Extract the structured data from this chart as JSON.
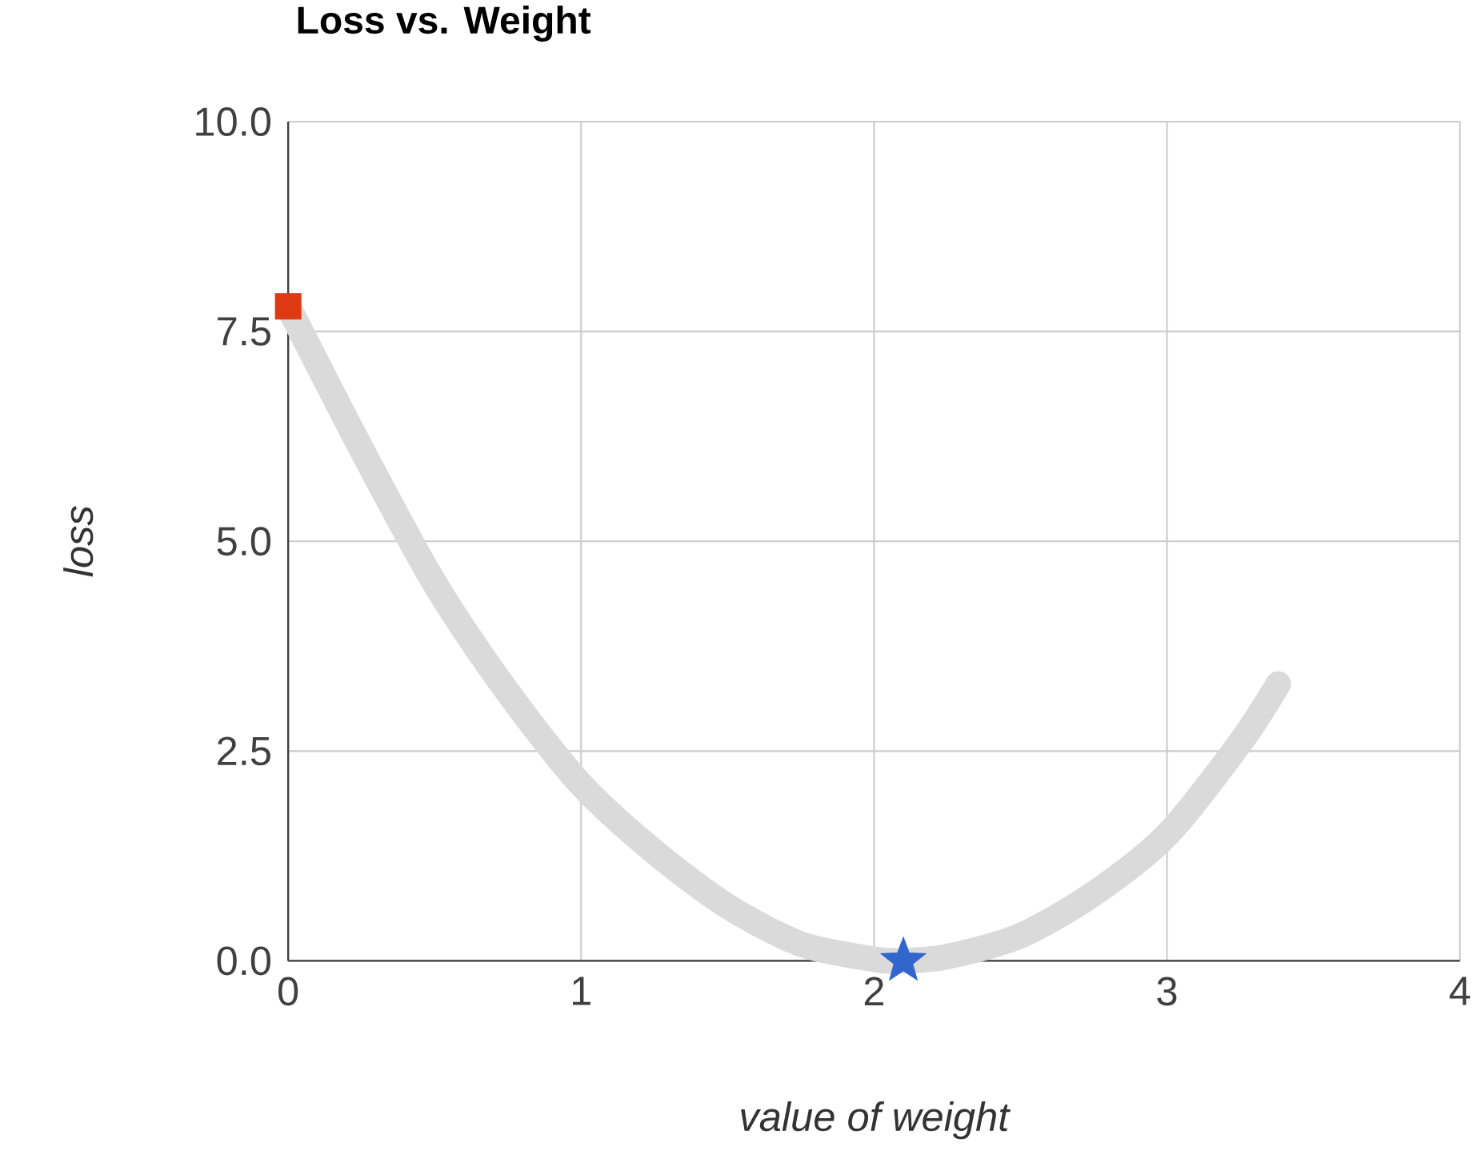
{
  "chart_data": {
    "type": "line",
    "title": "Loss vs. Weight",
    "xlabel": "value of weight",
    "ylabel": "loss",
    "xlim": [
      0,
      4
    ],
    "xticks": [
      0,
      1,
      2,
      3,
      4
    ],
    "ylim": [
      0,
      10
    ],
    "yticks": [
      {
        "value": 0,
        "label": "0.0"
      },
      {
        "value": 2.5,
        "label": "2.5"
      },
      {
        "value": 5,
        "label": "5.0"
      },
      {
        "value": 7.5,
        "label": "7.5"
      },
      {
        "value": 10,
        "label": "10.0"
      }
    ],
    "grid": true,
    "series": [
      {
        "color": "#dadada",
        "marker": "none",
        "x": [
          0,
          0.25,
          0.5,
          0.75,
          1,
          1.25,
          1.5,
          1.75,
          2,
          2.1,
          2.25,
          2.5,
          2.75,
          3,
          3.25,
          3.38
        ],
        "values": [
          7.8,
          6.1,
          4.5,
          3.2,
          2.1,
          1.3,
          0.65,
          0.2,
          0.02,
          0,
          0.05,
          0.3,
          0.8,
          1.5,
          2.6,
          3.3
        ]
      },
      {
        "type": "scatter",
        "color": "#dd3a14",
        "marker": "square",
        "x": [
          0
        ],
        "values": [
          7.8
        ]
      },
      {
        "type": "scatter",
        "color": "#3366cc",
        "marker": "star",
        "x": [
          2.1
        ],
        "values": [
          0
        ]
      }
    ]
  }
}
